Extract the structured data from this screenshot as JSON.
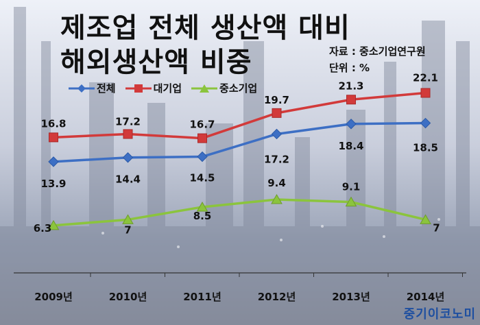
{
  "title_line1": "제조업 전체 생산액 대비",
  "title_line2": "해외생산액 비중",
  "source": "자료 : 중소기업연구원",
  "unit": "단위 : %",
  "watermark": "중기이코노미",
  "chart_data": {
    "type": "line",
    "categories": [
      "2009년",
      "2010년",
      "2011년",
      "2012년",
      "2013년",
      "2014년"
    ],
    "series": [
      {
        "name": "전체",
        "values": [
          13.9,
          14.4,
          14.5,
          17.2,
          18.4,
          18.5
        ],
        "color": "#3d6fc4",
        "marker": "diamond"
      },
      {
        "name": "대기업",
        "values": [
          16.8,
          17.2,
          16.7,
          19.7,
          21.3,
          22.1
        ],
        "color": "#d23a3a",
        "marker": "square"
      },
      {
        "name": "중소기업",
        "values": [
          6.3,
          7,
          8.5,
          9.4,
          9.1,
          7
        ],
        "color": "#8bc43d",
        "marker": "triangle"
      }
    ],
    "legend_position": "top-left",
    "grid": false
  }
}
